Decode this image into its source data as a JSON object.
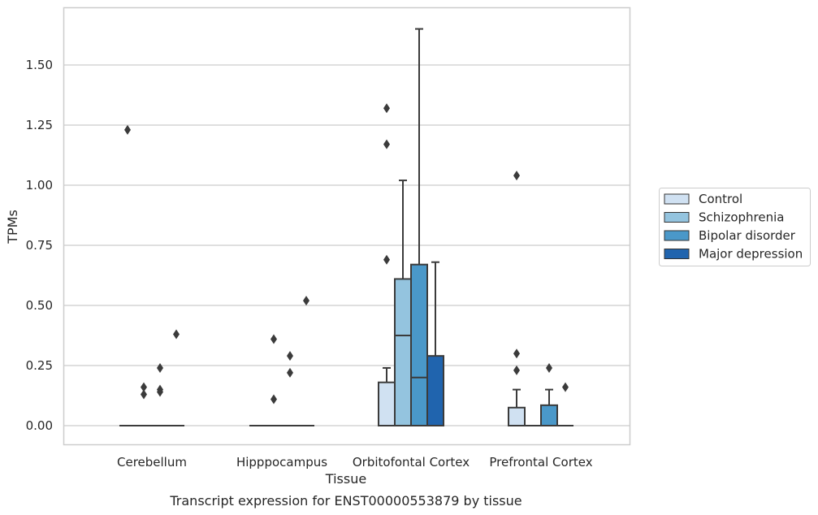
{
  "chart_data": {
    "type": "box",
    "caption": "Transcript expression for ENST00000553879 by tissue",
    "xlabel": "Tissue",
    "ylabel": "TPMs",
    "ylim": [
      -0.08,
      1.74
    ],
    "yticks": [
      0.0,
      0.25,
      0.5,
      0.75,
      1.0,
      1.25,
      1.5
    ],
    "ytick_labels": [
      "0.00",
      "0.25",
      "0.50",
      "0.75",
      "1.00",
      "1.25",
      "1.50"
    ],
    "grid": true,
    "legend_position": "right-outside",
    "categories": [
      "Cerebellum",
      "Hipppocampus",
      "Orbitofontal Cortex",
      "Prefrontal Cortex"
    ],
    "series": [
      {
        "name": "Control",
        "color": "#d0e1f2",
        "boxes": [
          {
            "min": 0,
            "q1": 0,
            "median": 0,
            "q3": 0,
            "max": 0,
            "outliers": [
              1.23
            ]
          },
          {
            "min": 0,
            "q1": 0,
            "median": 0,
            "q3": 0,
            "max": 0,
            "outliers": []
          },
          {
            "min": 0,
            "q1": 0,
            "median": 0,
            "q3": 0.18,
            "max": 0.24,
            "outliers": [
              0.69,
              1.17,
              1.32
            ]
          },
          {
            "min": 0,
            "q1": 0,
            "median": 0,
            "q3": 0.075,
            "max": 0.15,
            "outliers": [
              0.23,
              0.3,
              1.04
            ]
          }
        ]
      },
      {
        "name": "Schizophrenia",
        "color": "#94c4df",
        "boxes": [
          {
            "min": 0,
            "q1": 0,
            "median": 0,
            "q3": 0,
            "max": 0,
            "outliers": [
              0.13,
              0.16
            ]
          },
          {
            "min": 0,
            "q1": 0,
            "median": 0,
            "q3": 0,
            "max": 0,
            "outliers": [
              0.11,
              0.36
            ]
          },
          {
            "min": 0,
            "q1": 0,
            "median": 0.375,
            "q3": 0.61,
            "max": 1.02,
            "outliers": []
          },
          {
            "min": 0,
            "q1": 0,
            "median": 0,
            "q3": 0,
            "max": 0,
            "outliers": []
          }
        ]
      },
      {
        "name": "Bipolar disorder",
        "color": "#4a98c9",
        "boxes": [
          {
            "min": 0,
            "q1": 0,
            "median": 0,
            "q3": 0,
            "max": 0,
            "outliers": [
              0.14,
              0.15,
              0.24
            ]
          },
          {
            "min": 0,
            "q1": 0,
            "median": 0,
            "q3": 0,
            "max": 0,
            "outliers": [
              0.22,
              0.29
            ]
          },
          {
            "min": 0,
            "q1": 0,
            "median": 0.2,
            "q3": 0.67,
            "max": 1.65,
            "outliers": []
          },
          {
            "min": 0,
            "q1": 0,
            "median": 0,
            "q3": 0.085,
            "max": 0.15,
            "outliers": [
              0.24
            ]
          }
        ]
      },
      {
        "name": "Major depression",
        "color": "#2064ae",
        "boxes": [
          {
            "min": 0,
            "q1": 0,
            "median": 0,
            "q3": 0,
            "max": 0,
            "outliers": [
              0.38
            ]
          },
          {
            "min": 0,
            "q1": 0,
            "median": 0,
            "q3": 0,
            "max": 0,
            "outliers": [
              0.52
            ]
          },
          {
            "min": 0,
            "q1": 0,
            "median": 0,
            "q3": 0.29,
            "max": 0.68,
            "outliers": []
          },
          {
            "min": 0,
            "q1": 0,
            "median": 0,
            "q3": 0,
            "max": 0,
            "outliers": [
              0.16
            ]
          }
        ]
      }
    ],
    "colors": {
      "grid": "#cccccc",
      "frame": "#cccccc",
      "line": "#3b3b3b",
      "legend_border": "#cccccc"
    }
  }
}
